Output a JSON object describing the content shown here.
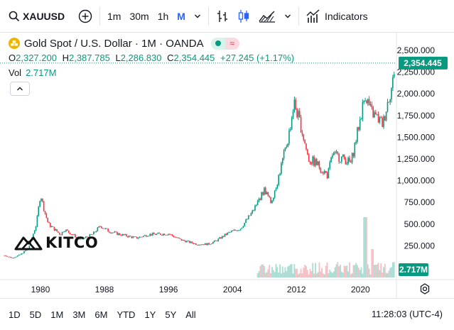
{
  "toolbar": {
    "symbol": "XAUUSD",
    "intervals": [
      "1m",
      "30m",
      "1h",
      "M"
    ],
    "active_interval": "M",
    "indicators_label": "Indicators"
  },
  "legend": {
    "title": "Gold Spot / U.S. Dollar · 1M · OANDA",
    "open_key": "O",
    "open": "2,327.200",
    "high_key": "H",
    "high": "2,387.785",
    "low_key": "L",
    "low": "2,286.830",
    "close_key": "C",
    "close": "2,354.445",
    "change": "+27.245 (+1.17%)",
    "vol_label": "Vol",
    "vol_value": "2.717M"
  },
  "price_badge": "2,354.445",
  "volume_badge": "2.717M",
  "watermark": "KITCO",
  "ranges": [
    "1D",
    "5D",
    "1M",
    "3M",
    "6M",
    "YTD",
    "1Y",
    "5Y",
    "All"
  ],
  "clock": "11:28:03 (UTC-4)",
  "colors": {
    "up": "#089981",
    "down": "#f23645",
    "accent": "#2962ff"
  },
  "chart_data": {
    "type": "line",
    "title": "Gold Spot / U.S. Dollar · 1M · OANDA",
    "xlabel": "",
    "ylabel": "",
    "x_ticks": [
      "1980",
      "1988",
      "1996",
      "2004",
      "2012",
      "2020"
    ],
    "y_ticks": [
      "2,500.000",
      "2,250.000",
      "2,000.000",
      "1,750.000",
      "1,500.000",
      "1,250.000",
      "1,000.000",
      "750.000",
      "500.000",
      "250.000"
    ],
    "xlim": [
      1975.3,
      2024.5
    ],
    "ylim": [
      0,
      2580
    ],
    "grid": false,
    "series": [
      {
        "x": [
          1975.5,
          1976.5,
          1977.5,
          1978.5,
          1979.5,
          1980.0,
          1980.5,
          1981.0,
          1982.5,
          1983.0,
          1985.0,
          1986.5,
          1987.5,
          1988.5,
          1990.0,
          1992.0,
          1993.5,
          1996.0,
          1997.5,
          1999.5,
          2001.0,
          2002.0,
          2003.5,
          2005.0,
          2006.5,
          2008.0,
          2008.8,
          2009.5,
          2011.0,
          2011.7,
          2012.5,
          2013.5,
          2014.5,
          2015.9,
          2016.5,
          2018.0,
          2018.8,
          2019.5,
          2020.6,
          2021.3,
          2022.8,
          2023.5,
          2024.0,
          2024.3
        ],
        "y": [
          140,
          110,
          150,
          220,
          500,
          850,
          650,
          500,
          380,
          440,
          320,
          380,
          480,
          420,
          380,
          340,
          380,
          390,
          320,
          270,
          270,
          310,
          400,
          450,
          640,
          900,
          750,
          950,
          1500,
          1900,
          1650,
          1250,
          1200,
          1060,
          1300,
          1250,
          1200,
          1500,
          2000,
          1800,
          1650,
          1950,
          2100,
          2354.445
        ]
      }
    ],
    "volume": {
      "label": "Vol",
      "last": "2.717M"
    }
  }
}
